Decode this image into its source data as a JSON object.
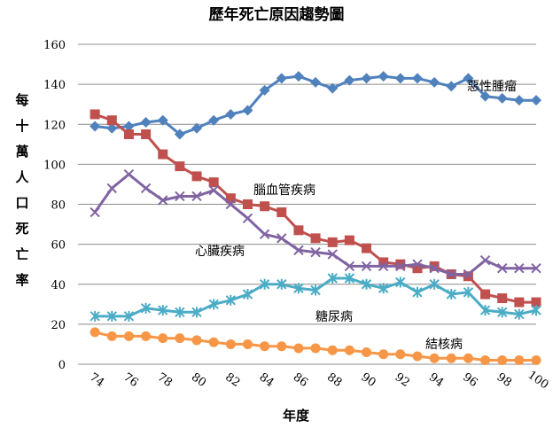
{
  "chart_data": {
    "type": "line",
    "title": "歷年死亡原因趨勢圖",
    "xlabel": "年度",
    "ylabel": "每十萬人口死亡率",
    "ylim": [
      0,
      160
    ],
    "yticks": [
      "0",
      "20",
      "40",
      "60",
      "80",
      "100",
      "120",
      "140",
      "160"
    ],
    "xticks": [
      "74",
      "76",
      "78",
      "80",
      "82",
      "84",
      "86",
      "88",
      "90",
      "92",
      "94",
      "96",
      "98",
      "100"
    ],
    "grid": true,
    "legend": "inline labels",
    "x": [
      74,
      75,
      76,
      77,
      78,
      79,
      80,
      81,
      82,
      83,
      84,
      85,
      86,
      87,
      88,
      89,
      90,
      91,
      92,
      93,
      94,
      95,
      96,
      97,
      98,
      99,
      100
    ],
    "series": [
      {
        "name": "惡性腫瘤",
        "color": "#4f81bd",
        "marker": "diamond",
        "values": [
          119,
          118,
          119,
          121,
          122,
          115,
          118,
          122,
          125,
          127,
          137,
          143,
          144,
          141,
          138,
          142,
          143,
          144,
          143,
          143,
          141,
          139,
          143,
          134,
          133,
          132,
          132
        ]
      },
      {
        "name": "腦血管疾病",
        "color": "#c0504d",
        "marker": "square",
        "values": [
          125,
          122,
          115,
          115,
          105,
          99,
          94,
          91,
          83,
          80,
          79,
          76,
          67,
          63,
          61,
          62,
          58,
          51,
          50,
          48,
          49,
          45,
          44,
          35,
          33,
          31,
          31
        ]
      },
      {
        "name": "心臟疾病",
        "color": "#8064a2",
        "marker": "x",
        "values": [
          76,
          88,
          95,
          88,
          82,
          84,
          84,
          87,
          80,
          73,
          65,
          63,
          57,
          56,
          55,
          49,
          49,
          49,
          49,
          50,
          48,
          45,
          45,
          52,
          48,
          48,
          48
        ]
      },
      {
        "name": "糖尿病",
        "color": "#4bacc6",
        "marker": "star",
        "values": [
          24,
          24,
          24,
          28,
          27,
          26,
          26,
          30,
          32,
          35,
          40,
          40,
          38,
          37,
          43,
          43,
          40,
          38,
          41,
          36,
          40,
          35,
          36,
          27,
          26,
          25,
          27
        ]
      },
      {
        "name": "結核病",
        "color": "#f79646",
        "marker": "circle",
        "values": [
          16,
          14,
          14,
          14,
          13,
          13,
          12,
          11,
          10,
          10,
          9,
          9,
          8,
          8,
          7,
          7,
          6,
          5,
          5,
          4,
          3,
          3,
          3,
          2,
          2,
          2,
          2
        ]
      }
    ]
  }
}
